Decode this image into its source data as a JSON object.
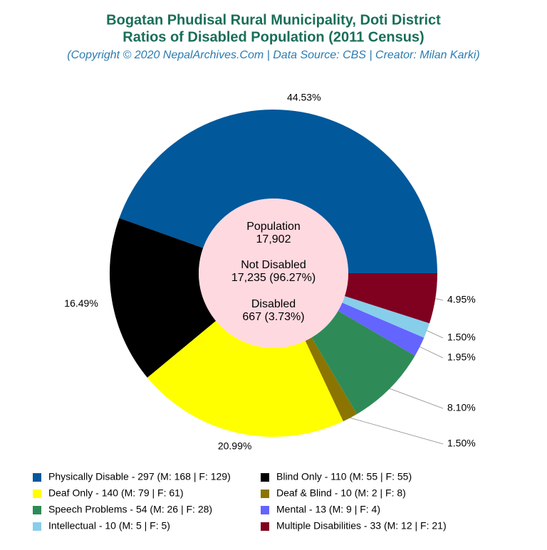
{
  "chart_data": {
    "type": "pie",
    "title": [
      "Bogatan Phudisal Rural Municipality, Doti District",
      "Ratios of Disabled Population (2011 Census)"
    ],
    "subtitle": "(Copyright © 2020 NepalArchives.Com | Data Source: CBS | Creator: Milan Karki)",
    "center_labels": [
      "Population",
      "17,902",
      "Not Disabled",
      "17,235 (96.27%)",
      "Disabled",
      "667 (3.73%)"
    ],
    "categories": [
      "Physically Disable - 297 (M: 168 | F: 129)",
      "Blind Only - 110 (M: 55 | F: 55)",
      "Deaf Only - 140 (M: 79 | F: 61)",
      "Deaf & Blind - 10 (M: 2 | F: 8)",
      "Speech Problems - 54 (M: 26 | F: 28)",
      "Mental - 13 (M: 9 | F: 4)",
      "Intellectual - 10 (M: 5 | F: 5)",
      "Multiple Disabilities - 33 (M: 12 | F: 21)"
    ],
    "values": [
      44.53,
      16.49,
      20.99,
      1.5,
      8.1,
      1.95,
      1.5,
      4.95
    ],
    "value_labels": [
      "44.53%",
      "16.49%",
      "20.99%",
      "1.50%",
      "8.10%",
      "1.95%",
      "1.50%",
      "4.95%"
    ],
    "colors": [
      "#01589b",
      "#000000",
      "#ffff00",
      "#8b7500",
      "#2e8b57",
      "#6464ff",
      "#87ceeb",
      "#800020"
    ],
    "hole_color": "#ffd9e0"
  }
}
